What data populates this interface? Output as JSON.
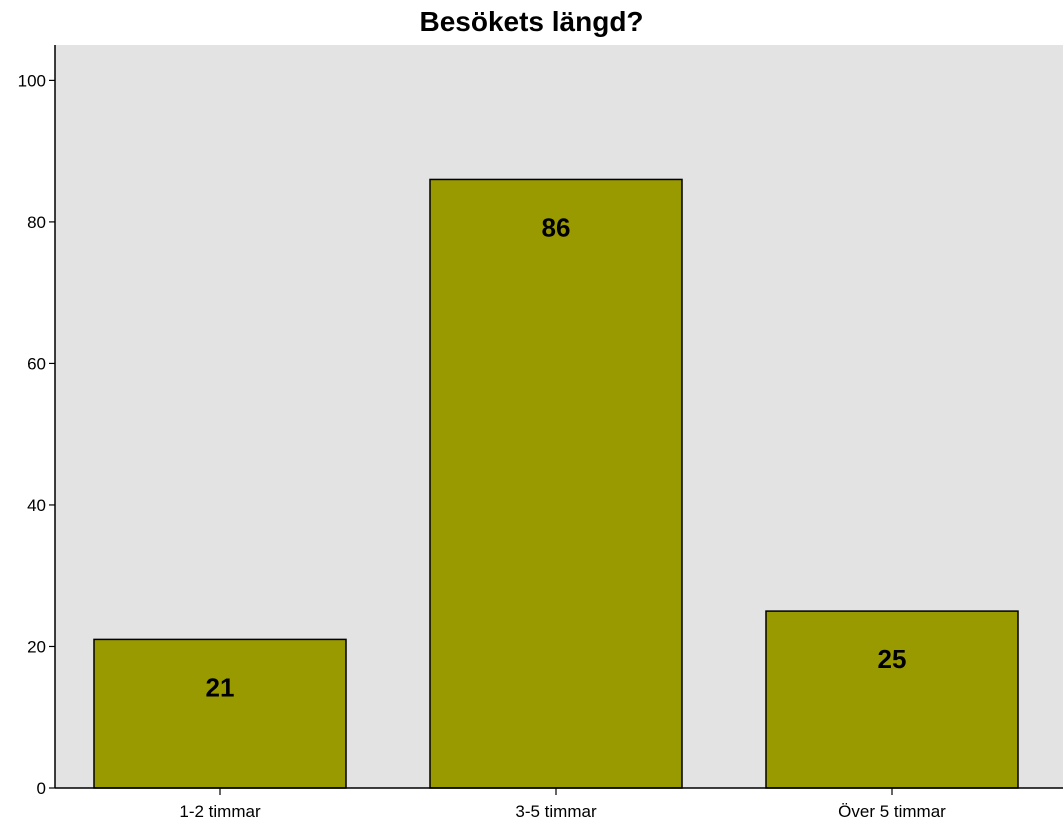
{
  "chart_data": {
    "type": "bar",
    "title": "Besökets längd?",
    "xlabel": "",
    "ylabel": "",
    "categories": [
      "1-2 timmar",
      "3-5 timmar",
      "Över 5 timmar"
    ],
    "values": [
      21,
      86,
      25
    ],
    "data_labels": [
      "21",
      "86",
      "25"
    ],
    "ylim": [
      0,
      105
    ],
    "yticks": [
      0,
      20,
      40,
      60,
      80,
      100
    ],
    "ytick_labels": [
      "0",
      "20",
      "40",
      "60",
      "80",
      "100"
    ],
    "grid": false,
    "legend": "none",
    "colors": {
      "bar_fill": "#999900",
      "bar_stroke": "#000000",
      "plot_background": "#e3e3e3",
      "axis": "#000000",
      "label_text": "#000000"
    }
  }
}
